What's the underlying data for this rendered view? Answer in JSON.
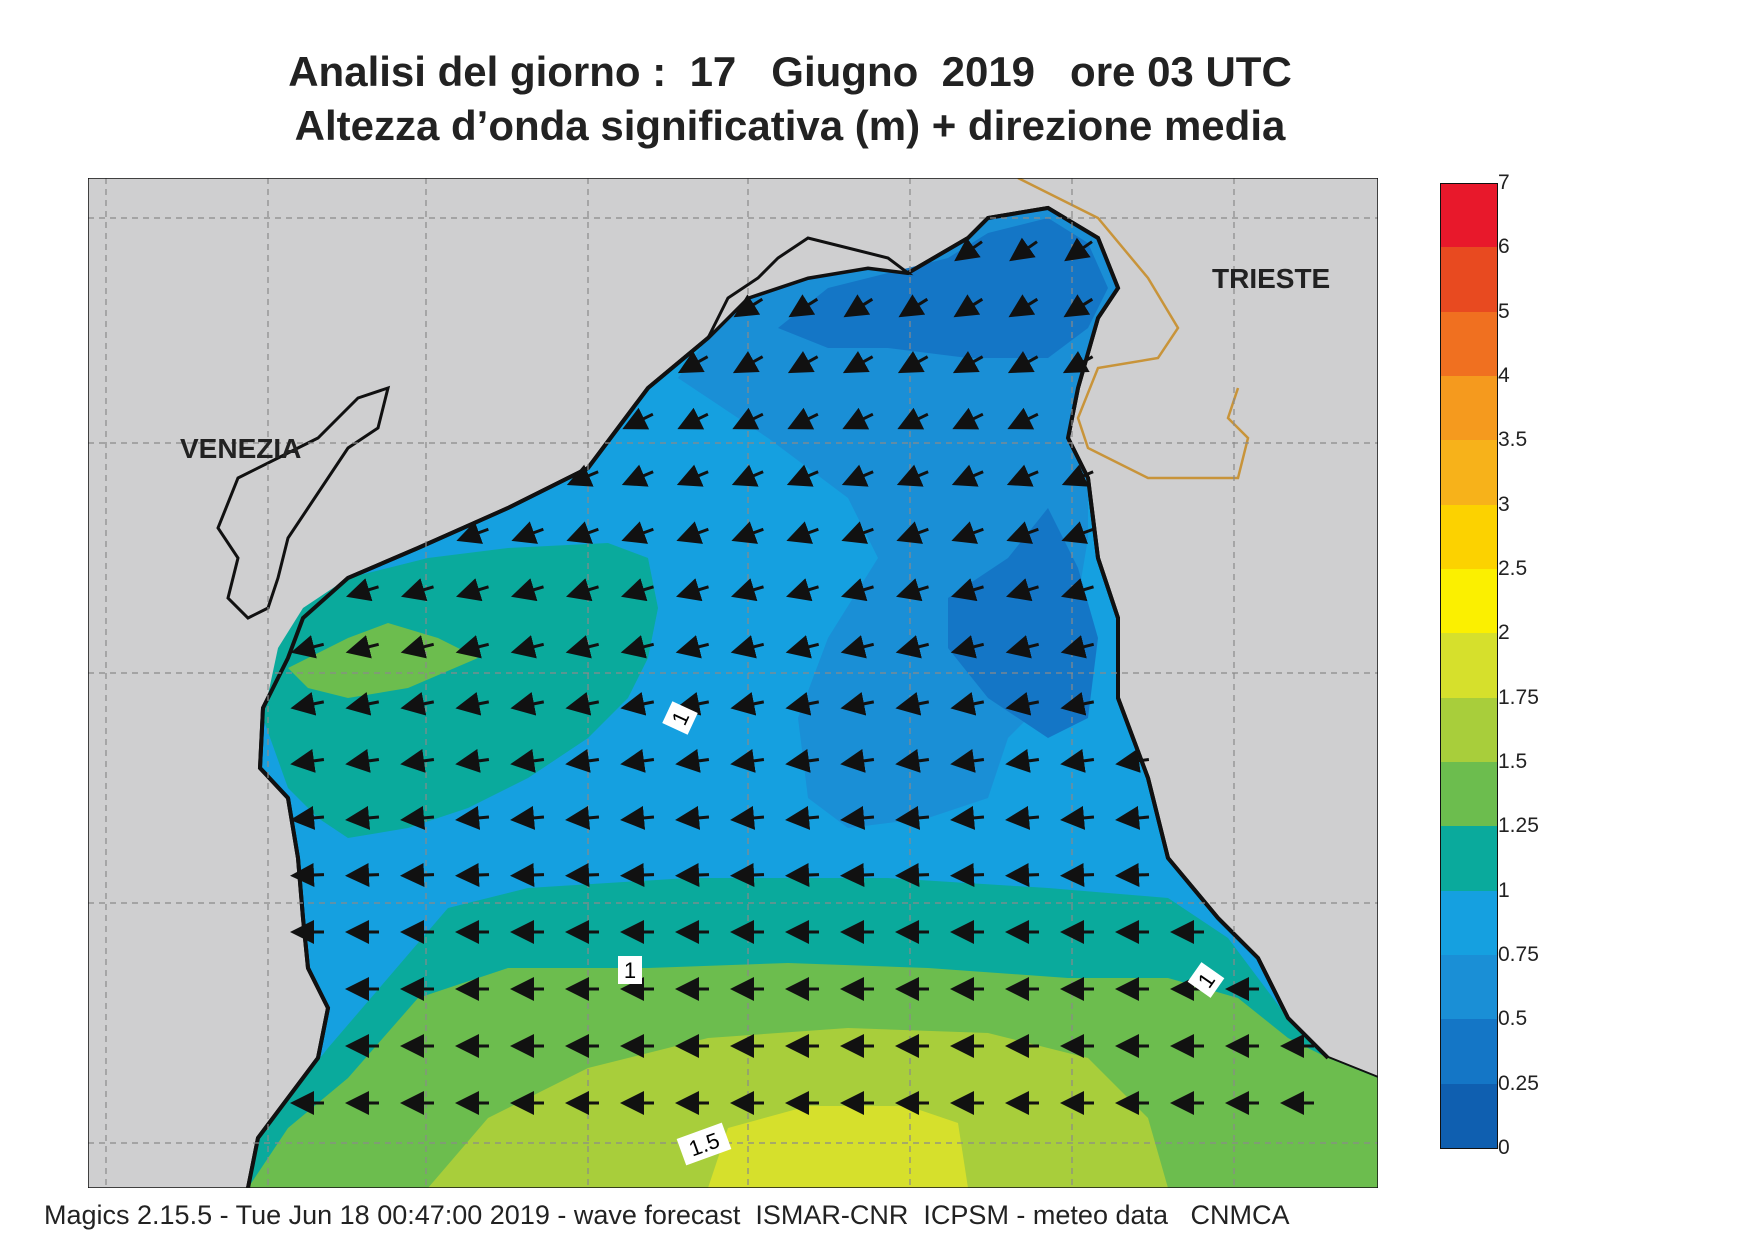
{
  "title": {
    "line1": "Analisi del giorno :  17   Giugno  2019   ore 03 UTC",
    "line2": "Altezza d’onda significativa (m) + direzione media"
  },
  "places": {
    "venezia": "VENEZIA",
    "trieste": "TRIESTE"
  },
  "contour_labels": [
    "1",
    "1",
    "1",
    "1.5"
  ],
  "legend": {
    "unit": "m",
    "levels": [
      {
        "label": "7",
        "color": "#e8136e"
      },
      {
        "label": "6",
        "color": "#e8182b"
      },
      {
        "label": "5",
        "color": "#e84a20"
      },
      {
        "label": "4",
        "color": "#f07020"
      },
      {
        "label": "3.5",
        "color": "#f59a1e"
      },
      {
        "label": "3",
        "color": "#f7b21a"
      },
      {
        "label": "2.5",
        "color": "#fcd200"
      },
      {
        "label": "2",
        "color": "#fbf000"
      },
      {
        "label": "1.75",
        "color": "#d6e02c"
      },
      {
        "label": "1.5",
        "color": "#a8ce3b"
      },
      {
        "label": "1.25",
        "color": "#6cbd4e"
      },
      {
        "label": "1",
        "color": "#0aaa9c"
      },
      {
        "label": "0.75",
        "color": "#15a0e0"
      },
      {
        "label": "0.5",
        "color": "#1a8fd6"
      },
      {
        "label": "0.25",
        "color": "#1476c6"
      },
      {
        "label": "0",
        "color": "#0f5fb0"
      }
    ]
  },
  "footer": "Magics 2.15.5 - Tue Jun 18 00:47:00 2019 - wave forecast  ISMAR-CNR  ICPSM - meteo data   CNMCA"
}
